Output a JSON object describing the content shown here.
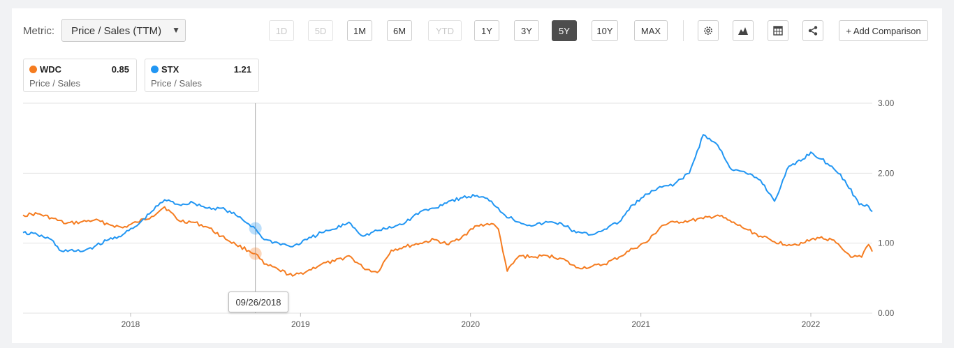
{
  "metric": {
    "label": "Metric:",
    "selected": "Price / Sales (TTM)"
  },
  "ranges": [
    {
      "label": "1D",
      "state": "disabled"
    },
    {
      "label": "5D",
      "state": "disabled"
    },
    {
      "label": "1M",
      "state": "normal"
    },
    {
      "label": "6M",
      "state": "normal"
    },
    {
      "label": "YTD",
      "state": "disabled"
    },
    {
      "label": "1Y",
      "state": "normal"
    },
    {
      "label": "3Y",
      "state": "normal"
    },
    {
      "label": "5Y",
      "state": "active"
    },
    {
      "label": "10Y",
      "state": "normal"
    },
    {
      "label": "MAX",
      "state": "normal"
    }
  ],
  "toolbar": {
    "add_comparison": "+ Add Comparison"
  },
  "icons": [
    "gear-icon",
    "mountain-chart-icon",
    "table-icon",
    "share-icon"
  ],
  "legend": [
    {
      "ticker": "WDC",
      "value": "0.85",
      "subtitle": "Price / Sales",
      "color": "#f57c20"
    },
    {
      "ticker": "STX",
      "value": "1.21",
      "subtitle": "Price / Sales",
      "color": "#2196f3"
    }
  ],
  "tooltip": {
    "date": "09/26/2018"
  },
  "chart_data": {
    "type": "line",
    "x_axis_ticks": [
      "2018",
      "2019",
      "2020",
      "2021",
      "2022"
    ],
    "y_axis_ticks": [
      "0.00",
      "1.00",
      "2.00",
      "3.00"
    ],
    "ylim": [
      0,
      3
    ],
    "xlim": [
      "2017-05-15",
      "2022-05-13"
    ],
    "grid": true,
    "crosshair_date": "2018-09-26",
    "series": [
      {
        "name": "WDC",
        "color": "#f57c20",
        "points": [
          [
            "2017-05-15",
            1.4
          ],
          [
            "2017-06-15",
            1.42
          ],
          [
            "2017-07-15",
            1.36
          ],
          [
            "2017-08-15",
            1.28
          ],
          [
            "2017-09-15",
            1.3
          ],
          [
            "2017-10-15",
            1.33
          ],
          [
            "2017-11-15",
            1.27
          ],
          [
            "2017-12-15",
            1.22
          ],
          [
            "2018-01-15",
            1.3
          ],
          [
            "2018-02-15",
            1.38
          ],
          [
            "2018-03-15",
            1.52
          ],
          [
            "2018-04-15",
            1.32
          ],
          [
            "2018-05-15",
            1.3
          ],
          [
            "2018-06-15",
            1.23
          ],
          [
            "2018-07-15",
            1.1
          ],
          [
            "2018-08-15",
            0.98
          ],
          [
            "2018-09-26",
            0.85
          ],
          [
            "2018-10-15",
            0.7
          ],
          [
            "2018-11-15",
            0.62
          ],
          [
            "2018-12-15",
            0.53
          ],
          [
            "2019-01-15",
            0.6
          ],
          [
            "2019-02-15",
            0.7
          ],
          [
            "2019-03-15",
            0.74
          ],
          [
            "2019-04-15",
            0.82
          ],
          [
            "2019-05-15",
            0.65
          ],
          [
            "2019-06-15",
            0.58
          ],
          [
            "2019-07-15",
            0.9
          ],
          [
            "2019-08-15",
            0.95
          ],
          [
            "2019-09-15",
            1.0
          ],
          [
            "2019-10-15",
            1.05
          ],
          [
            "2019-11-15",
            0.98
          ],
          [
            "2019-12-15",
            1.1
          ],
          [
            "2020-01-15",
            1.25
          ],
          [
            "2020-02-15",
            1.28
          ],
          [
            "2020-03-01",
            1.2
          ],
          [
            "2020-03-20",
            0.6
          ],
          [
            "2020-04-15",
            0.82
          ],
          [
            "2020-05-15",
            0.8
          ],
          [
            "2020-06-15",
            0.82
          ],
          [
            "2020-07-15",
            0.78
          ],
          [
            "2020-08-15",
            0.65
          ],
          [
            "2020-09-15",
            0.66
          ],
          [
            "2020-10-15",
            0.7
          ],
          [
            "2020-11-15",
            0.8
          ],
          [
            "2020-12-15",
            0.92
          ],
          [
            "2021-01-15",
            1.02
          ],
          [
            "2021-02-15",
            1.25
          ],
          [
            "2021-03-15",
            1.3
          ],
          [
            "2021-04-15",
            1.32
          ],
          [
            "2021-05-15",
            1.35
          ],
          [
            "2021-06-15",
            1.4
          ],
          [
            "2021-07-15",
            1.3
          ],
          [
            "2021-08-15",
            1.2
          ],
          [
            "2021-09-15",
            1.1
          ],
          [
            "2021-10-15",
            1.02
          ],
          [
            "2021-11-15",
            0.98
          ],
          [
            "2021-12-15",
            1.0
          ],
          [
            "2022-01-15",
            1.08
          ],
          [
            "2022-02-15",
            1.05
          ],
          [
            "2022-03-15",
            0.88
          ],
          [
            "2022-04-01",
            0.8
          ],
          [
            "2022-04-20",
            0.8
          ],
          [
            "2022-05-05",
            0.98
          ],
          [
            "2022-05-13",
            0.88
          ]
        ]
      },
      {
        "name": "STX",
        "color": "#2196f3",
        "points": [
          [
            "2017-05-15",
            1.15
          ],
          [
            "2017-06-15",
            1.12
          ],
          [
            "2017-07-15",
            1.05
          ],
          [
            "2017-08-01",
            0.9
          ],
          [
            "2017-09-15",
            0.88
          ],
          [
            "2017-10-15",
            0.95
          ],
          [
            "2017-11-15",
            1.05
          ],
          [
            "2017-12-15",
            1.12
          ],
          [
            "2018-01-15",
            1.25
          ],
          [
            "2018-02-15",
            1.45
          ],
          [
            "2018-03-15",
            1.62
          ],
          [
            "2018-04-15",
            1.55
          ],
          [
            "2018-05-15",
            1.58
          ],
          [
            "2018-06-15",
            1.5
          ],
          [
            "2018-07-15",
            1.5
          ],
          [
            "2018-08-15",
            1.4
          ],
          [
            "2018-09-26",
            1.21
          ],
          [
            "2018-10-15",
            1.05
          ],
          [
            "2018-11-15",
            1.0
          ],
          [
            "2018-12-15",
            0.95
          ],
          [
            "2019-01-15",
            1.05
          ],
          [
            "2019-02-15",
            1.15
          ],
          [
            "2019-03-15",
            1.2
          ],
          [
            "2019-04-15",
            1.3
          ],
          [
            "2019-05-15",
            1.1
          ],
          [
            "2019-06-15",
            1.18
          ],
          [
            "2019-07-15",
            1.22
          ],
          [
            "2019-08-15",
            1.3
          ],
          [
            "2019-09-15",
            1.45
          ],
          [
            "2019-10-15",
            1.5
          ],
          [
            "2019-11-15",
            1.6
          ],
          [
            "2019-12-15",
            1.65
          ],
          [
            "2020-01-15",
            1.68
          ],
          [
            "2020-02-15",
            1.6
          ],
          [
            "2020-03-15",
            1.4
          ],
          [
            "2020-04-15",
            1.3
          ],
          [
            "2020-05-15",
            1.25
          ],
          [
            "2020-06-15",
            1.3
          ],
          [
            "2020-07-15",
            1.28
          ],
          [
            "2020-08-15",
            1.15
          ],
          [
            "2020-09-15",
            1.12
          ],
          [
            "2020-10-15",
            1.2
          ],
          [
            "2020-11-15",
            1.3
          ],
          [
            "2020-12-15",
            1.55
          ],
          [
            "2021-01-15",
            1.7
          ],
          [
            "2021-02-15",
            1.8
          ],
          [
            "2021-03-15",
            1.85
          ],
          [
            "2021-04-15",
            2.0
          ],
          [
            "2021-05-15",
            2.55
          ],
          [
            "2021-06-15",
            2.4
          ],
          [
            "2021-07-15",
            2.05
          ],
          [
            "2021-08-15",
            2.0
          ],
          [
            "2021-09-15",
            1.9
          ],
          [
            "2021-10-15",
            1.6
          ],
          [
            "2021-11-15",
            2.1
          ],
          [
            "2021-12-15",
            2.2
          ],
          [
            "2022-01-01",
            2.3
          ],
          [
            "2022-02-15",
            2.1
          ],
          [
            "2022-03-15",
            1.9
          ],
          [
            "2022-04-15",
            1.55
          ],
          [
            "2022-05-01",
            1.55
          ],
          [
            "2022-05-13",
            1.45
          ]
        ]
      }
    ]
  }
}
